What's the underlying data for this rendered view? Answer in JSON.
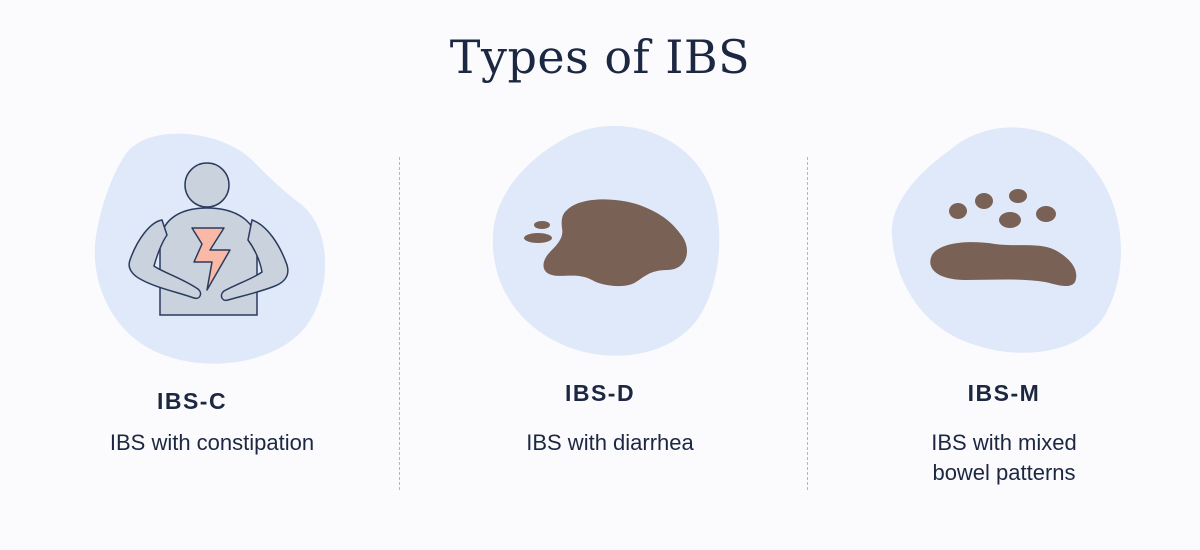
{
  "title": "Types of IBS",
  "colors": {
    "blob": "#dfe9f9",
    "stool": "#7a6156",
    "figure": "#c9d2dd",
    "figure_outline": "#2a3b5e",
    "pain": "#f9b9a6",
    "text": "#1c2742"
  },
  "types": [
    {
      "label": "IBS-C",
      "description": "IBS with constipation",
      "icon": "person-stomach-pain-icon"
    },
    {
      "label": "IBS-D",
      "description": "IBS with diarrhea",
      "icon": "liquid-stool-icon"
    },
    {
      "label": "IBS-M",
      "description": "IBS with mixed\nbowel patterns",
      "icon": "mixed-stool-icon"
    }
  ]
}
